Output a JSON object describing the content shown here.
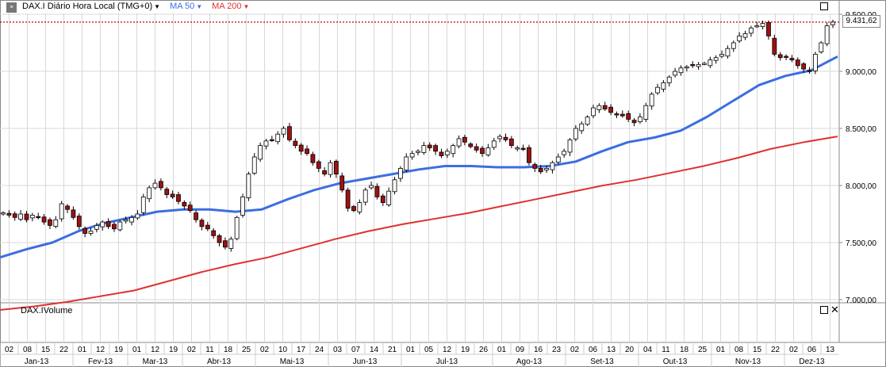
{
  "header": {
    "symbol_label": "DAX.I Diário Hora Local (TMG+0)",
    "ma50_label": "MA 50",
    "ma200_label": "MA 200",
    "ma50_color": "#3c6ee0",
    "ma200_color": "#e03030",
    "price_line_color": "#c00000"
  },
  "volume_panel": {
    "title": "DAX.IVolume"
  },
  "last_price_label": "9.431,62",
  "chart_data": {
    "type": "candlestick",
    "ylim": [
      6900,
      9650
    ],
    "y_ticks": [
      7000,
      7500,
      8000,
      8500,
      9000,
      9500
    ],
    "y_tick_labels": [
      "7.000,00",
      "7.500,00",
      "8.000,00",
      "8.500,00",
      "9.000,00",
      "9.500,00"
    ],
    "last_price": 9431.62,
    "grid": true,
    "day_ticks": [
      "02",
      "08",
      "15",
      "22",
      "01",
      "12",
      "19",
      "01",
      "12",
      "19",
      "02",
      "11",
      "18",
      "25",
      "02",
      "10",
      "17",
      "24",
      "03",
      "07",
      "14",
      "21",
      "01",
      "05",
      "12",
      "19",
      "26",
      "01",
      "09",
      "16",
      "23",
      "02",
      "06",
      "13",
      "20",
      "04",
      "11",
      "18",
      "25",
      "01",
      "08",
      "15",
      "22",
      "02",
      "06",
      "13"
    ],
    "months": [
      "Jan-13",
      "Fev-13",
      "Mar-13",
      "Abr-13",
      "Mai-13",
      "Jun-13",
      "Jul-13",
      "Ago-13",
      "Set-13",
      "Out-13",
      "Nov-13",
      "Dez-13"
    ],
    "close_series": {
      "name": "DAX.I",
      "values": [
        7760,
        7740,
        7720,
        7750,
        7700,
        7740,
        7720,
        7680,
        7650,
        7700,
        7840,
        7790,
        7720,
        7640,
        7580,
        7600,
        7650,
        7680,
        7640,
        7620,
        7680,
        7700,
        7720,
        7750,
        7900,
        7980,
        8020,
        7980,
        7920,
        7900,
        7860,
        7820,
        7780,
        7700,
        7640,
        7620,
        7560,
        7500,
        7460,
        7530,
        7720,
        7900,
        8100,
        8250,
        8350,
        8390,
        8400,
        8450,
        8500,
        8400,
        8350,
        8300,
        8280,
        8200,
        8150,
        8100,
        8200,
        8100,
        7960,
        7800,
        7780,
        7850,
        7960,
        8000,
        7900,
        7850,
        7950,
        8050,
        8150,
        8250,
        8280,
        8300,
        8350,
        8330,
        8300,
        8260,
        8300,
        8350,
        8410,
        8380,
        8340,
        8310,
        8280,
        8330,
        8390,
        8430,
        8400,
        8350,
        8330,
        8320,
        8200,
        8150,
        8120,
        8150,
        8200,
        8250,
        8300,
        8400,
        8500,
        8540,
        8600,
        8680,
        8700,
        8670,
        8640,
        8620,
        8610,
        8580,
        8550,
        8600,
        8700,
        8800,
        8860,
        8900,
        8950,
        9000,
        9030,
        9040,
        9050,
        9060,
        9070,
        9100,
        9120,
        9150,
        9200,
        9250,
        9310,
        9330,
        9380,
        9400,
        9420,
        9310,
        9150,
        9120,
        9130,
        9100,
        9050,
        9020,
        9000,
        9150,
        9250,
        9400,
        9431.62
      ]
    },
    "ma50": {
      "name": "MA 50",
      "start": 7370,
      "values": [
        7370,
        7440,
        7500,
        7600,
        7670,
        7720,
        7770,
        7790,
        7790,
        7770,
        7790,
        7880,
        7960,
        8020,
        8060,
        8100,
        8140,
        8170,
        8170,
        8160,
        8160,
        8170,
        8210,
        8300,
        8380,
        8420,
        8480,
        8600,
        8740,
        8880,
        8960,
        9010,
        9130
      ]
    },
    "ma200": {
      "name": "MA 200",
      "values": [
        6910,
        6940,
        6980,
        7030,
        7080,
        7160,
        7240,
        7310,
        7370,
        7450,
        7530,
        7600,
        7660,
        7710,
        7760,
        7820,
        7880,
        7940,
        8000,
        8050,
        8110,
        8170,
        8240,
        8320,
        8380,
        8430
      ]
    },
    "volume_panel": "DAX.IVolume"
  }
}
